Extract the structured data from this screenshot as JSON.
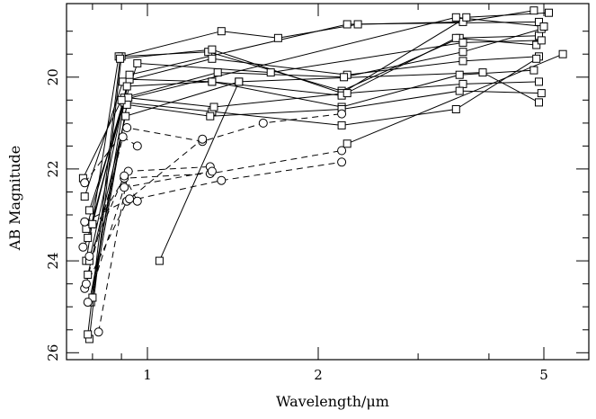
{
  "chart_data": {
    "type": "line",
    "title": "",
    "xlabel": "Wavelength/μm",
    "ylabel": "AB Magnitude",
    "x_scale": "log",
    "y_inverted": true,
    "xlim": [
      0.72,
      6.0
    ],
    "ylim": [
      26.15,
      18.4
    ],
    "x_ticks": [
      {
        "value": 1,
        "label": "1"
      },
      {
        "value": 2,
        "label": "2"
      },
      {
        "value": 5,
        "label": "5"
      }
    ],
    "y_ticks": [
      {
        "value": 20,
        "label": "20"
      },
      {
        "value": 22,
        "label": "22"
      },
      {
        "value": 24,
        "label": "24"
      },
      {
        "value": 26,
        "label": "26"
      }
    ],
    "grid": false,
    "legend": "none",
    "marker_types": [
      "open-square (measured)",
      "open-circle (dashed connectors)"
    ],
    "series": [
      {
        "style": "solid",
        "points": [
          {
            "x": 0.79,
            "y": 25.7,
            "m": "s"
          },
          {
            "x": 0.9,
            "y": 19.55,
            "m": "s"
          },
          {
            "x": 1.35,
            "y": 19.0,
            "m": "s"
          },
          {
            "x": 1.7,
            "y": 19.15,
            "m": "s"
          },
          {
            "x": 2.35,
            "y": 18.85,
            "m": "s"
          },
          {
            "x": 3.6,
            "y": 18.8,
            "m": "s"
          },
          {
            "x": 4.8,
            "y": 18.55,
            "m": "s"
          }
        ]
      },
      {
        "style": "solid",
        "points": [
          {
            "x": 0.78,
            "y": 24.0,
            "m": "s"
          },
          {
            "x": 0.89,
            "y": 19.55,
            "m": "s"
          },
          {
            "x": 1.28,
            "y": 19.45,
            "m": "s"
          },
          {
            "x": 2.2,
            "y": 20.3,
            "m": "s"
          },
          {
            "x": 3.55,
            "y": 19.15,
            "m": "s"
          },
          {
            "x": 4.9,
            "y": 19.1,
            "m": "s"
          }
        ]
      },
      {
        "style": "solid",
        "points": [
          {
            "x": 0.785,
            "y": 25.6,
            "m": "s"
          },
          {
            "x": 0.895,
            "y": 19.6,
            "m": "s"
          },
          {
            "x": 1.3,
            "y": 19.4,
            "m": "s"
          },
          {
            "x": 2.2,
            "y": 20.35,
            "m": "s"
          },
          {
            "x": 3.65,
            "y": 18.7,
            "m": "s"
          },
          {
            "x": 5.1,
            "y": 18.6,
            "m": "s"
          }
        ]
      },
      {
        "style": "solid",
        "points": [
          {
            "x": 0.775,
            "y": 22.6,
            "m": "s"
          },
          {
            "x": 0.905,
            "y": 20.1,
            "m": "s"
          },
          {
            "x": 1.3,
            "y": 19.6,
            "m": "s"
          },
          {
            "x": 2.25,
            "y": 19.95,
            "m": "s"
          },
          {
            "x": 3.6,
            "y": 19.65,
            "m": "s"
          },
          {
            "x": 4.9,
            "y": 19.55,
            "m": "s"
          }
        ]
      },
      {
        "style": "solid",
        "points": [
          {
            "x": 0.78,
            "y": 23.3,
            "m": "s"
          },
          {
            "x": 0.91,
            "y": 20.45,
            "m": "s"
          },
          {
            "x": 1.33,
            "y": 19.9,
            "m": "s"
          },
          {
            "x": 2.22,
            "y": 20.0,
            "m": "s"
          },
          {
            "x": 3.6,
            "y": 19.45,
            "m": "s"
          },
          {
            "x": 4.95,
            "y": 18.95,
            "m": "s"
          }
        ]
      },
      {
        "style": "solid",
        "points": [
          {
            "x": 0.785,
            "y": 23.5,
            "m": "s"
          },
          {
            "x": 0.93,
            "y": 20.05,
            "m": "s"
          },
          {
            "x": 1.3,
            "y": 20.1,
            "m": "s"
          },
          {
            "x": 2.2,
            "y": 20.4,
            "m": "s"
          },
          {
            "x": 3.5,
            "y": 19.15,
            "m": "s"
          },
          {
            "x": 4.85,
            "y": 19.3,
            "m": "s"
          }
        ]
      },
      {
        "style": "solid",
        "points": [
          {
            "x": 0.79,
            "y": 24.0,
            "m": "s"
          },
          {
            "x": 0.92,
            "y": 20.2,
            "m": "s"
          },
          {
            "x": 1.3,
            "y": 20.1,
            "m": "s"
          },
          {
            "x": 2.2,
            "y": 20.65,
            "m": "s"
          },
          {
            "x": 3.55,
            "y": 19.95,
            "m": "s"
          },
          {
            "x": 4.8,
            "y": 19.85,
            "m": "s"
          }
        ]
      },
      {
        "style": "solid",
        "points": [
          {
            "x": 0.795,
            "y": 24.9,
            "m": "s"
          },
          {
            "x": 0.91,
            "y": 20.55,
            "m": "s"
          },
          {
            "x": 1.3,
            "y": 20.75,
            "m": "s"
          },
          {
            "x": 2.2,
            "y": 21.05,
            "m": "s"
          },
          {
            "x": 3.5,
            "y": 20.7,
            "m": "s"
          },
          {
            "x": 4.85,
            "y": 19.6,
            "m": "s"
          }
        ]
      },
      {
        "style": "solid",
        "points": [
          {
            "x": 0.79,
            "y": 24.9,
            "m": "s"
          },
          {
            "x": 0.925,
            "y": 20.45,
            "m": "s"
          },
          {
            "x": 1.31,
            "y": 20.65,
            "m": "s"
          },
          {
            "x": 2.25,
            "y": 20.35,
            "m": "s"
          },
          {
            "x": 3.6,
            "y": 20.15,
            "m": "s"
          },
          {
            "x": 4.9,
            "y": 20.1,
            "m": "s"
          }
        ]
      },
      {
        "style": "solid",
        "points": [
          {
            "x": 0.8,
            "y": 24.8,
            "m": "s"
          },
          {
            "x": 0.92,
            "y": 20.6,
            "m": "s"
          },
          {
            "x": 1.29,
            "y": 20.85,
            "m": "s"
          },
          {
            "x": 2.2,
            "y": 20.7,
            "m": "s"
          },
          {
            "x": 3.55,
            "y": 20.3,
            "m": "s"
          },
          {
            "x": 4.95,
            "y": 20.35,
            "m": "s"
          }
        ]
      },
      {
        "style": "solid",
        "points": [
          {
            "x": 0.785,
            "y": 24.3,
            "m": "s"
          },
          {
            "x": 0.915,
            "y": 20.85,
            "m": "s"
          },
          {
            "x": 1.45,
            "y": 20.1,
            "m": "s"
          },
          {
            "x": 3.9,
            "y": 19.9,
            "m": "s"
          },
          {
            "x": 4.9,
            "y": 20.55,
            "m": "s"
          }
        ]
      },
      {
        "style": "solid",
        "points": [
          {
            "x": 0.79,
            "y": 22.9,
            "m": "s"
          },
          {
            "x": 0.96,
            "y": 19.7,
            "m": "s"
          },
          {
            "x": 1.65,
            "y": 19.9,
            "m": "s"
          },
          {
            "x": 3.6,
            "y": 19.25,
            "m": "s"
          },
          {
            "x": 4.95,
            "y": 19.2,
            "m": "s"
          }
        ]
      },
      {
        "style": "solid",
        "points": [
          {
            "x": 0.8,
            "y": 23.2,
            "m": "s"
          },
          {
            "x": 0.93,
            "y": 19.95,
            "m": "s"
          },
          {
            "x": 2.25,
            "y": 18.85,
            "m": "s"
          },
          {
            "x": 4.9,
            "y": 18.8,
            "m": "s"
          }
        ]
      },
      {
        "style": "solid",
        "points": [
          {
            "x": 0.77,
            "y": 22.2,
            "m": "s"
          },
          {
            "x": 0.9,
            "y": 20.5,
            "m": "s"
          },
          {
            "x": 3.5,
            "y": 18.7,
            "m": "s"
          },
          {
            "x": 5.0,
            "y": 18.9,
            "m": "s"
          }
        ]
      },
      {
        "style": "solid",
        "points": [
          {
            "x": 1.05,
            "y": 24.0,
            "m": "s"
          },
          {
            "x": 1.45,
            "y": 20.1,
            "m": "s"
          }
        ]
      },
      {
        "style": "solid",
        "points": [
          {
            "x": 2.25,
            "y": 21.45,
            "m": "s"
          },
          {
            "x": 5.4,
            "y": 19.5,
            "m": "s"
          }
        ]
      },
      {
        "style": "dashed",
        "points": [
          {
            "x": 0.775,
            "y": 22.3,
            "m": "c"
          },
          {
            "x": 0.92,
            "y": 21.1,
            "m": "c"
          },
          {
            "x": 1.25,
            "y": 21.4,
            "m": "c"
          },
          {
            "x": 1.6,
            "y": 21.0,
            "m": "c"
          },
          {
            "x": 2.2,
            "y": 20.8,
            "m": "c"
          }
        ]
      },
      {
        "style": "dashed",
        "points": [
          {
            "x": 0.77,
            "y": 23.7,
            "m": "c"
          },
          {
            "x": 0.91,
            "y": 22.2,
            "m": "c"
          },
          {
            "x": 1.29,
            "y": 22.1,
            "m": "c"
          },
          {
            "x": 2.2,
            "y": 21.6,
            "m": "c"
          }
        ]
      },
      {
        "style": "dashed",
        "points": [
          {
            "x": 0.775,
            "y": 24.6,
            "m": "c"
          },
          {
            "x": 0.92,
            "y": 22.7,
            "m": "c"
          },
          {
            "x": 1.35,
            "y": 22.25,
            "m": "c"
          },
          {
            "x": 2.2,
            "y": 21.85,
            "m": "c"
          }
        ]
      },
      {
        "style": "dashed",
        "points": [
          {
            "x": 0.82,
            "y": 25.55,
            "m": "c"
          },
          {
            "x": 0.925,
            "y": 22.05,
            "m": "c"
          },
          {
            "x": 1.29,
            "y": 21.95,
            "m": "c"
          }
        ]
      },
      {
        "style": "dashed",
        "points": [
          {
            "x": 0.785,
            "y": 24.9,
            "m": "c"
          },
          {
            "x": 0.91,
            "y": 22.4,
            "m": "c"
          },
          {
            "x": 1.3,
            "y": 22.05,
            "m": "c"
          }
        ]
      },
      {
        "style": "dashed",
        "points": [
          {
            "x": 0.78,
            "y": 24.5,
            "m": "c"
          },
          {
            "x": 0.905,
            "y": 21.3,
            "m": "c"
          },
          {
            "x": 0.96,
            "y": 21.5,
            "m": "c"
          }
        ]
      },
      {
        "style": "dashed",
        "points": [
          {
            "x": 0.79,
            "y": 23.9,
            "m": "c"
          },
          {
            "x": 0.91,
            "y": 22.15,
            "m": "c"
          },
          {
            "x": 0.96,
            "y": 22.7,
            "m": "c"
          }
        ]
      },
      {
        "style": "dashed",
        "points": [
          {
            "x": 0.775,
            "y": 23.15,
            "m": "c"
          },
          {
            "x": 0.93,
            "y": 22.65,
            "m": "c"
          },
          {
            "x": 1.25,
            "y": 21.35,
            "m": "c"
          }
        ]
      }
    ]
  }
}
